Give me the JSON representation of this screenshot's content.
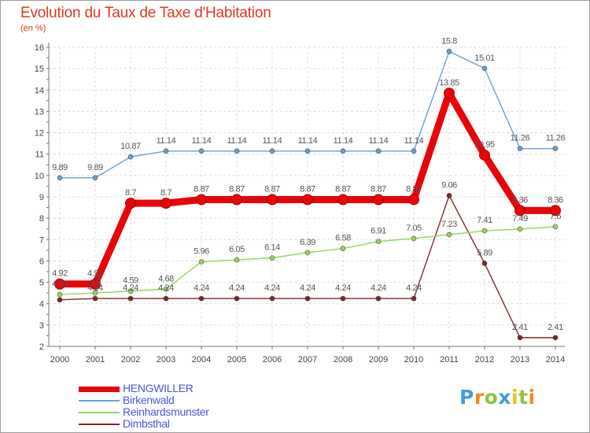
{
  "chart_data": {
    "type": "line",
    "title": "Evolution du Taux de Taxe d'Habitation",
    "subtitle": "(en %)",
    "x": [
      "2000",
      "2001",
      "2002",
      "2003",
      "2004",
      "2005",
      "2006",
      "2007",
      "2008",
      "2009",
      "2010",
      "2011",
      "2012",
      "2013",
      "2014"
    ],
    "ylim": [
      2,
      16
    ],
    "y_ticks": [
      2,
      3,
      4,
      5,
      6,
      7,
      8,
      9,
      10,
      11,
      12,
      13,
      14,
      15,
      16
    ],
    "grid": true,
    "legend_position": "bottom-left",
    "series": [
      {
        "name": "HENGWILLER",
        "color": "#e8050a",
        "values": [
          4.92,
          4.92,
          8.7,
          8.7,
          8.87,
          8.87,
          8.87,
          8.87,
          8.87,
          8.87,
          8.87,
          13.85,
          10.95,
          8.36,
          8.36
        ],
        "labels": [
          "4.92",
          "4.92",
          "8.7",
          "8.7",
          "8.87",
          "8.87",
          "8.87",
          "8.87",
          "8.87",
          "8.87",
          "8.87",
          "13.85",
          "10.95",
          "8.36",
          "8.36"
        ]
      },
      {
        "name": "Birkenwald",
        "color": "#6a9fd1",
        "values": [
          9.89,
          9.89,
          10.87,
          11.14,
          11.14,
          11.14,
          11.14,
          11.14,
          11.14,
          11.14,
          11.14,
          15.8,
          15.01,
          11.26,
          11.26
        ],
        "labels": [
          "9.89",
          "9.89",
          "10.87",
          "11.14",
          "11.14",
          "11.14",
          "11.14",
          "11.14",
          "11.14",
          "11.14",
          "11.14",
          "15.8",
          "15.01",
          "11.26",
          "11.26"
        ]
      },
      {
        "name": "Reinhardsmunster",
        "color": "#93d45b",
        "values": [
          4.43,
          4.5,
          4.59,
          4.68,
          5.96,
          6.05,
          6.14,
          6.39,
          6.58,
          6.91,
          7.05,
          7.23,
          7.41,
          7.49,
          7.6
        ],
        "labels": [
          "4.43",
          "4.5",
          "4.59",
          "4.68",
          "5.96",
          "6.05",
          "6.14",
          "6.39",
          "6.58",
          "6.91",
          "7.05",
          "7.23",
          "7.41",
          "7.49",
          "7.6"
        ]
      },
      {
        "name": "Dimbsthal",
        "color": "#7c2a2a",
        "values": [
          4.18,
          4.24,
          4.24,
          4.24,
          4.24,
          4.24,
          4.24,
          4.24,
          4.24,
          4.24,
          4.24,
          9.06,
          5.89,
          2.41,
          2.41
        ],
        "labels": [
          "",
          "4.24",
          "4.24",
          "4.24",
          "4.24",
          "4.24",
          "4.24",
          "4.24",
          "4.24",
          "4.24",
          "4.24",
          "9.06",
          "5.89",
          "2.41",
          "2.41"
        ]
      }
    ]
  },
  "brand": {
    "letters": [
      "P",
      "r",
      "o",
      "x",
      "i",
      "t",
      "i"
    ],
    "colors": [
      "#3aa0d8",
      "#f28b1e",
      "#8fc43d",
      "#3aa0d8",
      "#e8c21a",
      "#8fc43d",
      "#f28b1e"
    ]
  }
}
